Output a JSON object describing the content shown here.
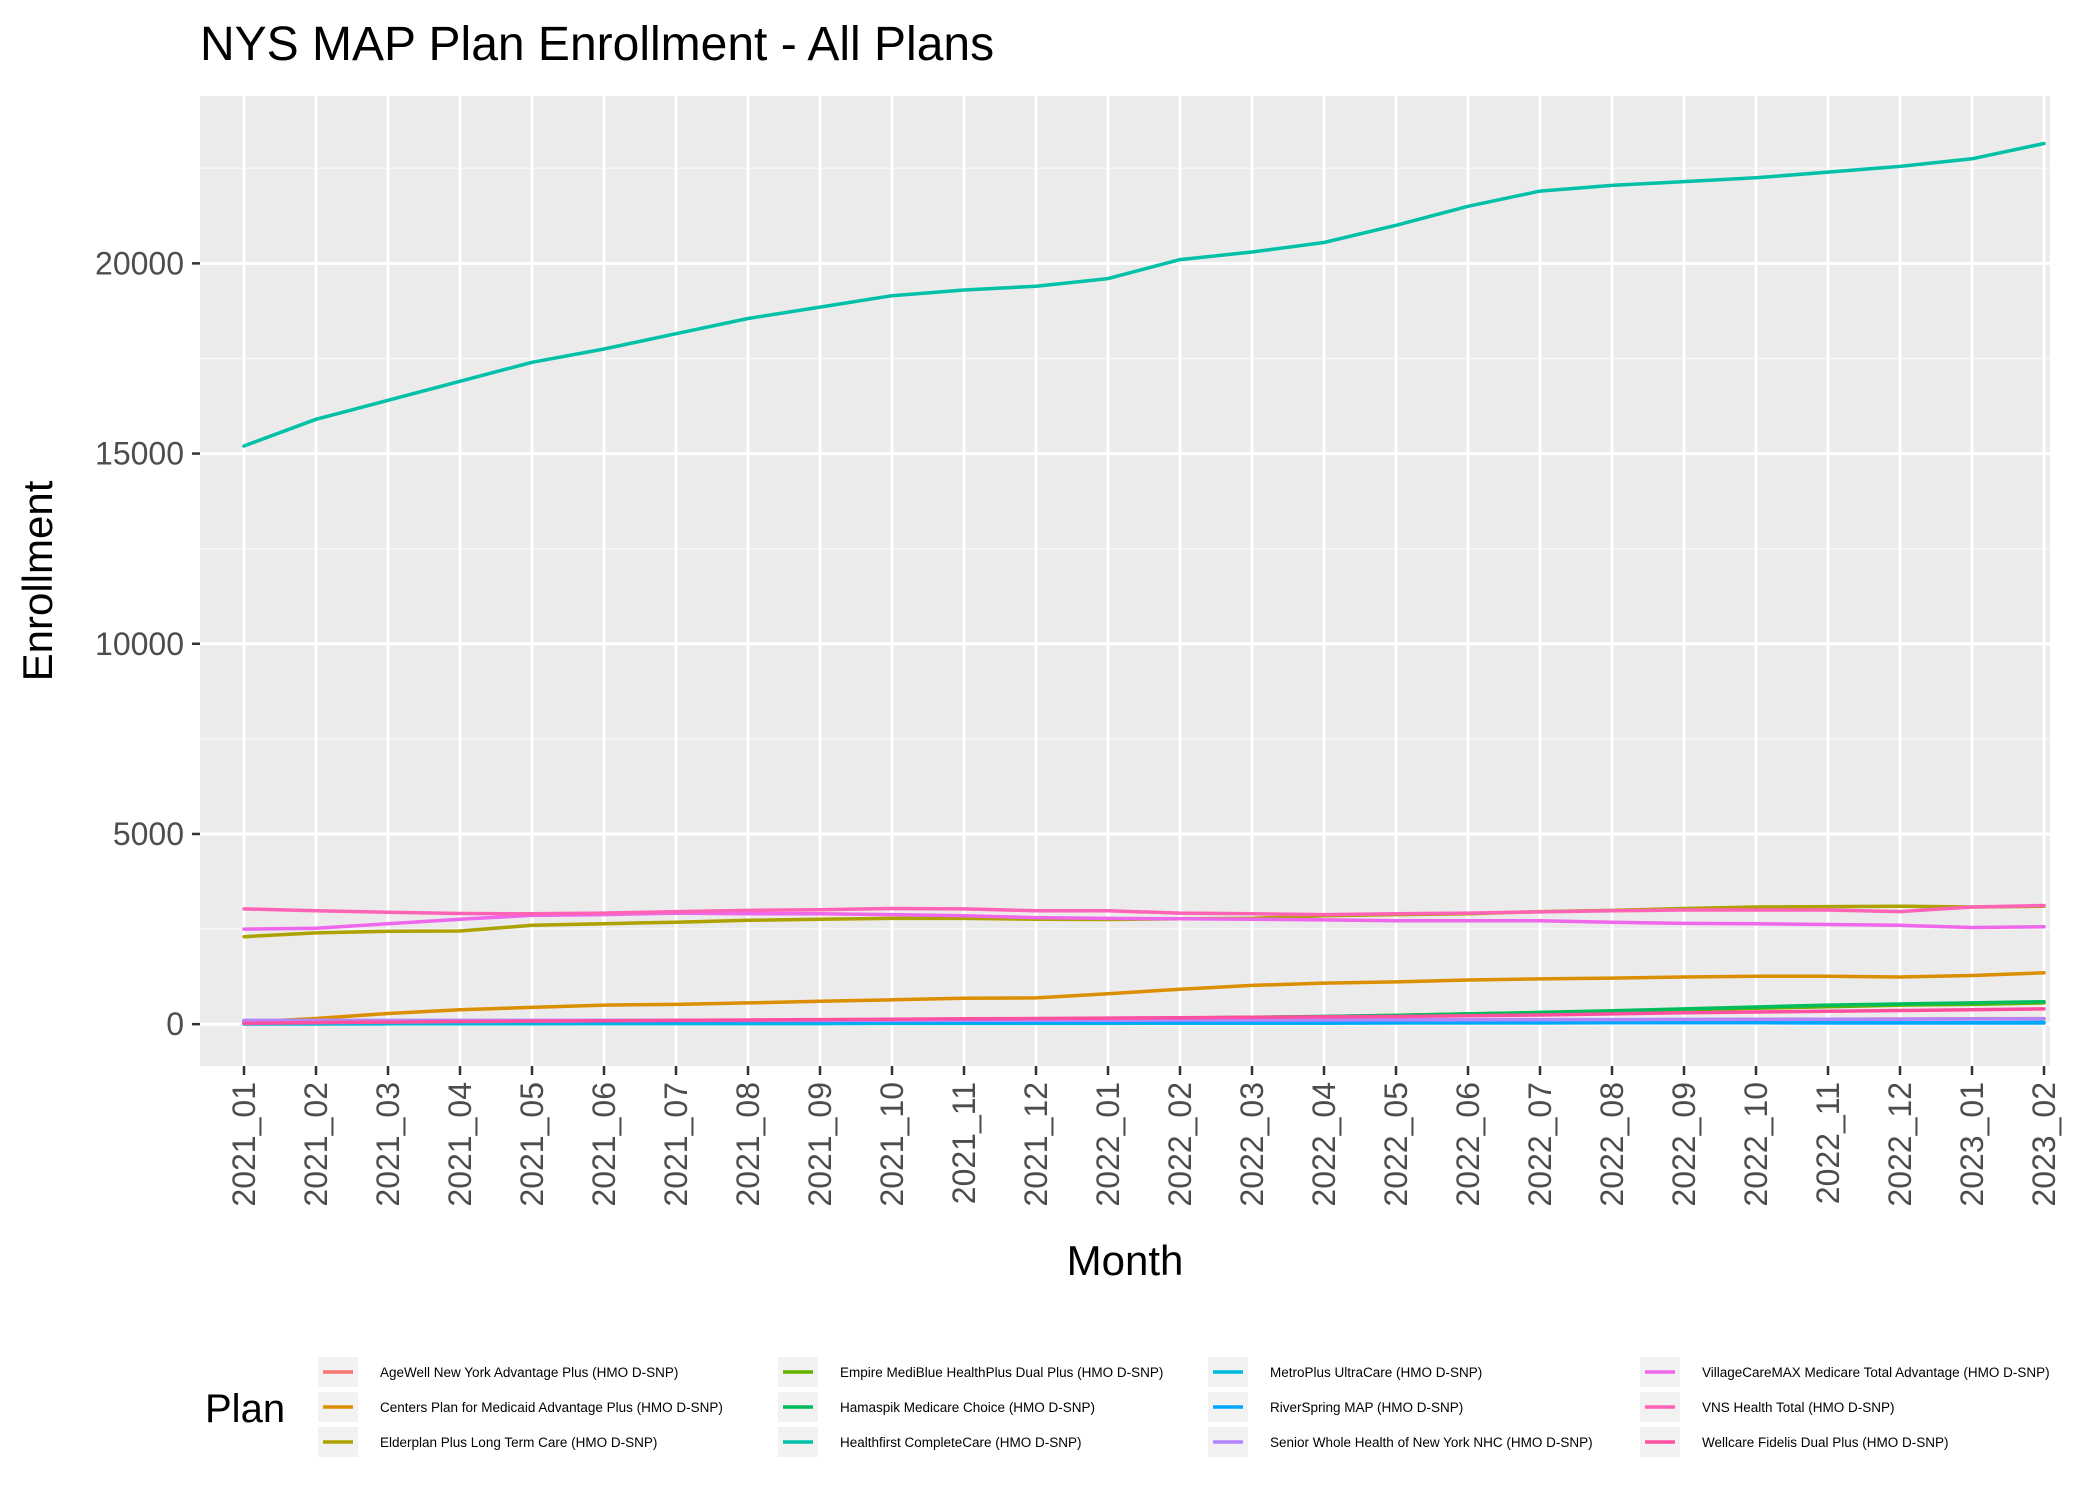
{
  "chart_data": {
    "type": "line",
    "title": "NYS MAP Plan Enrollment - All Plans",
    "xlabel": "Month",
    "ylabel": "Enrollment",
    "legend_title": "Plan",
    "legend_position": "bottom",
    "grid": true,
    "ylim": [
      -1100,
      24400
    ],
    "y_ticks": [
      0,
      5000,
      10000,
      15000,
      20000
    ],
    "x": [
      "2021_01",
      "2021_02",
      "2021_03",
      "2021_04",
      "2021_05",
      "2021_06",
      "2021_07",
      "2021_08",
      "2021_09",
      "2021_10",
      "2021_11",
      "2021_12",
      "2022_01",
      "2022_02",
      "2022_03",
      "2022_04",
      "2022_05",
      "2022_06",
      "2022_07",
      "2022_08",
      "2022_09",
      "2022_10",
      "2022_11",
      "2022_12",
      "2023_01",
      "2023_02"
    ],
    "series": [
      {
        "name": "AgeWell New York Advantage Plus (HMO D-SNP)",
        "color": "#F8766D",
        "values": [
          20,
          25,
          30,
          35,
          40,
          45,
          50,
          55,
          60,
          65,
          70,
          75,
          80,
          85,
          90,
          95,
          100,
          105,
          110,
          115,
          120,
          125,
          130,
          135,
          140,
          145
        ]
      },
      {
        "name": "Centers Plan for Medicaid Advantage Plus (HMO D-SNP)",
        "color": "#DB8E00",
        "values": [
          50,
          150,
          280,
          380,
          440,
          500,
          520,
          560,
          600,
          640,
          680,
          690,
          800,
          920,
          1020,
          1080,
          1110,
          1160,
          1190,
          1210,
          1240,
          1260,
          1260,
          1240,
          1280,
          1350
        ]
      },
      {
        "name": "Elderplan Plus Long Term Care (HMO D-SNP)",
        "color": "#AEA200",
        "values": [
          2300,
          2400,
          2440,
          2450,
          2600,
          2640,
          2680,
          2730,
          2760,
          2780,
          2780,
          2760,
          2750,
          2770,
          2780,
          2850,
          2880,
          2900,
          2960,
          2990,
          3040,
          3080,
          3090,
          3100,
          3080,
          3100
        ]
      },
      {
        "name": "Empire MediBlue HealthPlus Dual Plus (HMO D-SNP)",
        "color": "#64B200",
        "values": [
          10,
          15,
          20,
          25,
          30,
          40,
          50,
          60,
          70,
          80,
          100,
          120,
          140,
          160,
          180,
          200,
          230,
          270,
          300,
          340,
          380,
          420,
          460,
          500,
          520,
          560
        ]
      },
      {
        "name": "Hamaspik Medicare Choice (HMO D-SNP)",
        "color": "#00BD5C",
        "values": [
          10,
          15,
          20,
          25,
          30,
          40,
          50,
          60,
          70,
          80,
          100,
          120,
          140,
          160,
          180,
          200,
          230,
          270,
          310,
          350,
          400,
          450,
          500,
          530,
          560,
          590
        ]
      },
      {
        "name": "Healthfirst CompleteCare (HMO D-SNP)",
        "color": "#00C1A7",
        "values": [
          15200,
          15900,
          16400,
          16900,
          17400,
          17750,
          18150,
          18550,
          18850,
          19150,
          19300,
          19400,
          19600,
          20100,
          20300,
          20550,
          21000,
          21500,
          21900,
          22050,
          22150,
          22250,
          22400,
          22550,
          22750,
          23150
        ]
      },
      {
        "name": "MetroPlus UltraCare (HMO D-SNP)",
        "color": "#00BADE",
        "values": [
          5,
          5,
          10,
          10,
          10,
          15,
          15,
          15,
          15,
          20,
          20,
          20,
          20,
          25,
          25,
          25,
          30,
          30,
          30,
          35,
          35,
          35,
          40,
          40,
          40,
          45
        ]
      },
      {
        "name": "RiverSpring MAP (HMO D-SNP)",
        "color": "#00A6FF",
        "values": [
          90,
          85,
          80,
          75,
          70,
          65,
          65,
          60,
          60,
          60,
          55,
          55,
          50,
          50,
          45,
          45,
          40,
          40,
          40,
          35,
          35,
          35,
          30,
          30,
          30,
          30
        ]
      },
      {
        "name": "Senior Whole Health of New York NHC (HMO D-SNP)",
        "color": "#B385FF",
        "values": [
          100,
          100,
          100,
          100,
          100,
          100,
          100,
          100,
          100,
          100,
          105,
          105,
          105,
          110,
          110,
          110,
          115,
          115,
          120,
          120,
          125,
          125,
          130,
          130,
          135,
          140
        ]
      },
      {
        "name": "VillageCareMAX Medicare Total Advantage (HMO D-SNP)",
        "color": "#EF67EB",
        "values": [
          2500,
          2520,
          2640,
          2760,
          2860,
          2880,
          2920,
          2900,
          2900,
          2880,
          2850,
          2800,
          2780,
          2770,
          2760,
          2740,
          2720,
          2720,
          2720,
          2680,
          2650,
          2640,
          2620,
          2600,
          2540,
          2560
        ]
      },
      {
        "name": "VNS Health Total (HMO D-SNP)",
        "color": "#FF63B6",
        "values": [
          3030,
          2980,
          2940,
          2910,
          2900,
          2920,
          2960,
          2990,
          3010,
          3040,
          3030,
          2980,
          2980,
          2920,
          2900,
          2880,
          2900,
          2920,
          2950,
          2980,
          3000,
          3000,
          3000,
          2960,
          3080,
          3120
        ]
      },
      {
        "name": "Wellcare Fidelis Dual Plus (HMO D-SNP)",
        "color": "#FF4FA0",
        "values": [
          20,
          40,
          55,
          70,
          80,
          90,
          100,
          110,
          120,
          130,
          140,
          150,
          160,
          170,
          180,
          190,
          200,
          220,
          240,
          270,
          300,
          320,
          340,
          360,
          380,
          400
        ]
      }
    ]
  }
}
